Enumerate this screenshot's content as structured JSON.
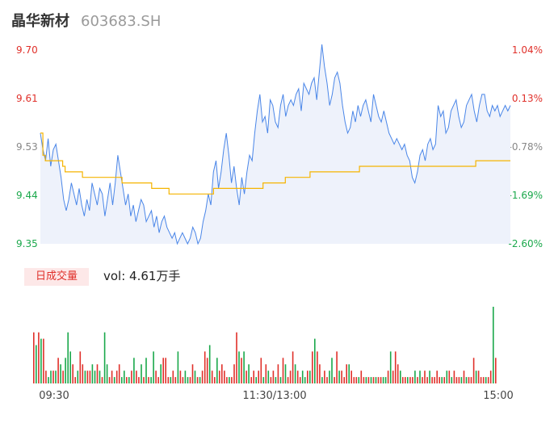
{
  "header": {
    "name": "晶华新材",
    "code": "603683.SH"
  },
  "volume_panel": {
    "tag": "日成交量",
    "label": "vol: 4.61万手"
  },
  "colors": {
    "price_line": "#4a86e8",
    "price_fill": "#eef2fb",
    "avg_line": "#f5b400",
    "up": "#e0302a",
    "down": "#1aa84b",
    "axis_text": "#555555"
  },
  "chart_data": [
    {
      "type": "line",
      "title": "",
      "price_ticks": [
        "9.70",
        "9.61",
        "9.53",
        "9.44",
        "9.35"
      ],
      "pct_ticks": [
        "1.04%",
        "0.13%",
        "-0.78%",
        "-1.69%",
        "-2.60%"
      ],
      "time_ticks": [
        "09:30",
        "11:30/13:00",
        "15:00"
      ],
      "ylim": [
        9.35,
        9.7
      ],
      "series": [
        {
          "values": [
            9.55,
            9.52,
            9.5,
            9.54,
            9.49,
            9.52,
            9.53,
            9.5,
            9.47,
            9.43,
            9.41,
            9.43,
            9.46,
            9.44,
            9.42,
            9.45,
            9.42,
            9.4,
            9.43,
            9.41,
            9.46,
            9.44,
            9.42,
            9.45,
            9.44,
            9.4,
            9.43,
            9.46,
            9.42,
            9.46,
            9.51,
            9.48,
            9.45,
            9.42,
            9.44,
            9.4,
            9.42,
            9.39,
            9.41,
            9.43,
            9.42,
            9.39,
            9.4,
            9.41,
            9.38,
            9.4,
            9.37,
            9.39,
            9.4,
            9.38,
            9.37,
            9.36,
            9.37,
            9.35,
            9.36,
            9.37,
            9.36,
            9.35,
            9.36,
            9.38,
            9.37,
            9.35,
            9.36,
            9.39,
            9.41,
            9.44,
            9.42,
            9.48,
            9.5,
            9.45,
            9.48,
            9.52,
            9.55,
            9.51,
            9.46,
            9.49,
            9.45,
            9.42,
            9.47,
            9.44,
            9.48,
            9.51,
            9.5,
            9.55,
            9.59,
            9.62,
            9.57,
            9.58,
            9.55,
            9.61,
            9.6,
            9.57,
            9.56,
            9.6,
            9.62,
            9.58,
            9.6,
            9.61,
            9.6,
            9.62,
            9.63,
            9.59,
            9.64,
            9.63,
            9.62,
            9.64,
            9.65,
            9.61,
            9.66,
            9.71,
            9.67,
            9.64,
            9.6,
            9.62,
            9.65,
            9.66,
            9.64,
            9.6,
            9.57,
            9.55,
            9.56,
            9.59,
            9.57,
            9.6,
            9.58,
            9.6,
            9.61,
            9.59,
            9.57,
            9.62,
            9.6,
            9.58,
            9.57,
            9.59,
            9.57,
            9.55,
            9.54,
            9.53,
            9.54,
            9.53,
            9.52,
            9.53,
            9.51,
            9.5,
            9.47,
            9.46,
            9.48,
            9.51,
            9.52,
            9.5,
            9.53,
            9.54,
            9.52,
            9.53,
            9.6,
            9.58,
            9.59,
            9.55,
            9.56,
            9.59,
            9.6,
            9.61,
            9.58,
            9.56,
            9.57,
            9.6,
            9.61,
            9.62,
            9.59,
            9.57,
            9.6,
            9.62,
            9.62,
            9.59,
            9.58,
            9.6,
            9.59,
            9.6,
            9.58,
            9.59,
            9.6,
            9.59,
            9.6
          ]
        },
        {
          "values": [
            9.55,
            9.51,
            9.5,
            9.5,
            9.5,
            9.5,
            9.5,
            9.5,
            9.5,
            9.49,
            9.48,
            9.48,
            9.48,
            9.48,
            9.48,
            9.48,
            9.48,
            9.47,
            9.47,
            9.47,
            9.47,
            9.47,
            9.47,
            9.47,
            9.47,
            9.47,
            9.47,
            9.47,
            9.47,
            9.47,
            9.47,
            9.47,
            9.47,
            9.46,
            9.46,
            9.46,
            9.46,
            9.46,
            9.46,
            9.46,
            9.46,
            9.46,
            9.46,
            9.46,
            9.46,
            9.45,
            9.45,
            9.45,
            9.45,
            9.45,
            9.45,
            9.45,
            9.44,
            9.44,
            9.44,
            9.44,
            9.44,
            9.44,
            9.44,
            9.44,
            9.44,
            9.44,
            9.44,
            9.44,
            9.44,
            9.44,
            9.44,
            9.44,
            9.44,
            9.44,
            9.45,
            9.45,
            9.45,
            9.45,
            9.45,
            9.45,
            9.45,
            9.45,
            9.45,
            9.45,
            9.45,
            9.45,
            9.45,
            9.45,
            9.45,
            9.45,
            9.45,
            9.45,
            9.45,
            9.45,
            9.46,
            9.46,
            9.46,
            9.46,
            9.46,
            9.46,
            9.46,
            9.46,
            9.46,
            9.47,
            9.47,
            9.47,
            9.47,
            9.47,
            9.47,
            9.47,
            9.47,
            9.47,
            9.47,
            9.48,
            9.48,
            9.48,
            9.48,
            9.48,
            9.48,
            9.48,
            9.48,
            9.48,
            9.48,
            9.48,
            9.48,
            9.48,
            9.48,
            9.48,
            9.48,
            9.48,
            9.48,
            9.48,
            9.48,
            9.49,
            9.49,
            9.49,
            9.49,
            9.49,
            9.49,
            9.49,
            9.49,
            9.49,
            9.49,
            9.49,
            9.49,
            9.49,
            9.49,
            9.49,
            9.49,
            9.49,
            9.49,
            9.49,
            9.49,
            9.49,
            9.49,
            9.49,
            9.49,
            9.49,
            9.49,
            9.49,
            9.49,
            9.49,
            9.49,
            9.49,
            9.49,
            9.49,
            9.49,
            9.49,
            9.49,
            9.49,
            9.49,
            9.49,
            9.49,
            9.49,
            9.49,
            9.49,
            9.49,
            9.49,
            9.49,
            9.49,
            9.5,
            9.5,
            9.5,
            9.5,
            9.5,
            9.5,
            9.5,
            9.5,
            9.5,
            9.5,
            9.5,
            9.5,
            9.5,
            9.5,
            9.5
          ]
        }
      ]
    },
    {
      "type": "bar",
      "title": "",
      "series": [
        {
          "values": [
            8,
            6,
            8,
            7,
            7,
            2,
            1,
            2,
            2,
            2,
            4,
            3,
            2,
            4,
            8,
            5,
            3,
            1,
            2,
            5,
            3,
            2,
            2,
            2,
            3,
            2,
            3,
            2,
            1,
            8,
            3,
            1,
            2,
            1,
            2,
            3,
            1,
            2,
            1,
            1,
            2,
            4,
            2,
            1,
            3,
            1,
            4,
            1,
            1,
            5,
            2,
            1,
            3,
            4,
            4,
            1,
            1,
            2,
            1,
            5,
            2,
            1,
            2,
            1,
            1,
            3,
            2,
            1,
            1,
            2,
            5,
            4,
            6,
            2,
            1,
            4,
            2,
            3,
            2,
            1,
            1,
            1,
            3,
            8,
            5,
            4,
            5,
            2,
            3,
            1,
            2,
            1,
            2,
            4,
            1,
            3,
            2,
            1,
            2,
            1,
            3,
            1,
            4,
            3,
            1,
            2,
            5,
            3,
            2,
            1,
            2,
            1,
            2,
            2,
            5,
            7,
            5,
            3,
            1,
            2,
            1,
            2,
            4,
            1,
            5,
            2,
            2,
            1,
            3,
            3,
            2,
            1,
            1,
            1,
            2,
            1,
            1,
            1,
            1,
            1,
            1,
            1,
            1,
            1,
            1,
            2,
            5,
            2,
            5,
            3,
            2,
            1,
            1,
            1,
            1,
            1,
            2,
            1,
            2,
            1,
            2,
            1,
            2,
            1,
            1,
            2,
            1,
            1,
            1,
            2,
            2,
            1,
            2,
            1,
            1,
            1,
            2,
            1,
            1,
            1,
            4,
            2,
            2,
            1,
            1,
            1,
            1,
            2,
            12,
            4
          ],
          "up": [
            1,
            0,
            1,
            0,
            1,
            1,
            0,
            0,
            1,
            0,
            1,
            0,
            1,
            0,
            0,
            0,
            1,
            1,
            0,
            1,
            1,
            0,
            1,
            1,
            0,
            0,
            1,
            0,
            1,
            0,
            0,
            1,
            1,
            0,
            1,
            1,
            0,
            0,
            1,
            0,
            1,
            0,
            1,
            1,
            0,
            1,
            0,
            1,
            0,
            0,
            1,
            1,
            0,
            1,
            1,
            1,
            0,
            1,
            1,
            0,
            1,
            1,
            0,
            0,
            1,
            1,
            0,
            1,
            0,
            1,
            1,
            1,
            0,
            1,
            1,
            0,
            1,
            1,
            1,
            1,
            0,
            1,
            1,
            1,
            0,
            1,
            0,
            1,
            0,
            1,
            1,
            0,
            1,
            1,
            0,
            1,
            0,
            1,
            1,
            0,
            1,
            0,
            1,
            0,
            1,
            1,
            1,
            0,
            1,
            1,
            0,
            0,
            1,
            0,
            1,
            0,
            1,
            1,
            0,
            1,
            1,
            0,
            0,
            1,
            1,
            0,
            1,
            1,
            1,
            0,
            1,
            1,
            1,
            0,
            1,
            1,
            0,
            1,
            0,
            1,
            0,
            1,
            1,
            0,
            0,
            1,
            0,
            1,
            1,
            1,
            0,
            1,
            1,
            0,
            1,
            1,
            0,
            1,
            0,
            1,
            1,
            1,
            0,
            1,
            1,
            1,
            1,
            0,
            1,
            0,
            1,
            0,
            1,
            1,
            1,
            0,
            1,
            0,
            1,
            1,
            1,
            0,
            1,
            1,
            1,
            0,
            1,
            1,
            0,
            1
          ]
        }
      ]
    }
  ]
}
